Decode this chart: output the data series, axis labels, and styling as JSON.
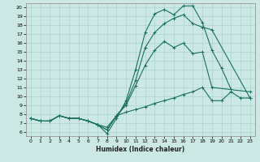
{
  "title": "",
  "xlabel": "Humidex (Indice chaleur)",
  "ylabel": "",
  "bg_color": "#cce8e4",
  "grid_color": "#aad4cc",
  "line_color": "#1a7060",
  "xlim": [
    -0.5,
    23.5
  ],
  "ylim": [
    5.5,
    20.5
  ],
  "xticks": [
    0,
    1,
    2,
    3,
    4,
    5,
    6,
    7,
    8,
    9,
    10,
    11,
    12,
    13,
    14,
    15,
    16,
    17,
    18,
    19,
    20,
    21,
    22,
    23
  ],
  "yticks": [
    6,
    7,
    8,
    9,
    10,
    11,
    12,
    13,
    14,
    15,
    16,
    17,
    18,
    19,
    20
  ],
  "lines": [
    {
      "x": [
        0,
        1,
        2,
        3,
        4,
        5,
        6,
        7,
        8,
        9,
        10,
        11,
        12,
        13,
        14,
        15,
        16,
        17,
        18,
        19,
        20,
        21
      ],
      "y": [
        7.5,
        7.2,
        7.2,
        7.8,
        7.5,
        7.5,
        7.2,
        6.8,
        5.8,
        7.5,
        9.5,
        13.0,
        17.2,
        19.3,
        19.8,
        19.2,
        20.2,
        20.2,
        18.3,
        15.2,
        13.2,
        10.8
      ]
    },
    {
      "x": [
        0,
        1,
        2,
        3,
        4,
        5,
        6,
        7,
        8,
        9,
        10,
        11,
        12,
        13,
        14,
        15,
        16,
        17,
        18,
        19,
        23
      ],
      "y": [
        7.5,
        7.2,
        7.2,
        7.8,
        7.5,
        7.5,
        7.2,
        6.8,
        6.5,
        7.8,
        9.2,
        11.8,
        15.5,
        17.2,
        18.2,
        18.8,
        19.2,
        18.2,
        17.8,
        17.5,
        9.8
      ]
    },
    {
      "x": [
        0,
        1,
        2,
        3,
        4,
        5,
        6,
        7,
        8,
        9,
        10,
        11,
        12,
        13,
        14,
        15,
        16,
        17,
        18,
        19,
        23
      ],
      "y": [
        7.5,
        7.2,
        7.2,
        7.8,
        7.5,
        7.5,
        7.2,
        6.8,
        6.2,
        7.8,
        9.0,
        11.2,
        13.5,
        15.2,
        16.2,
        15.5,
        16.0,
        14.8,
        15.0,
        11.0,
        10.5
      ]
    },
    {
      "x": [
        0,
        1,
        2,
        3,
        4,
        5,
        6,
        7,
        8,
        9,
        10,
        11,
        12,
        13,
        14,
        15,
        16,
        17,
        18,
        19,
        20,
        21,
        22,
        23
      ],
      "y": [
        7.5,
        7.2,
        7.2,
        7.8,
        7.5,
        7.5,
        7.2,
        6.8,
        6.2,
        7.8,
        8.2,
        8.5,
        8.8,
        9.2,
        9.5,
        9.8,
        10.2,
        10.5,
        11.0,
        9.5,
        9.5,
        10.5,
        9.8,
        9.8
      ]
    }
  ]
}
